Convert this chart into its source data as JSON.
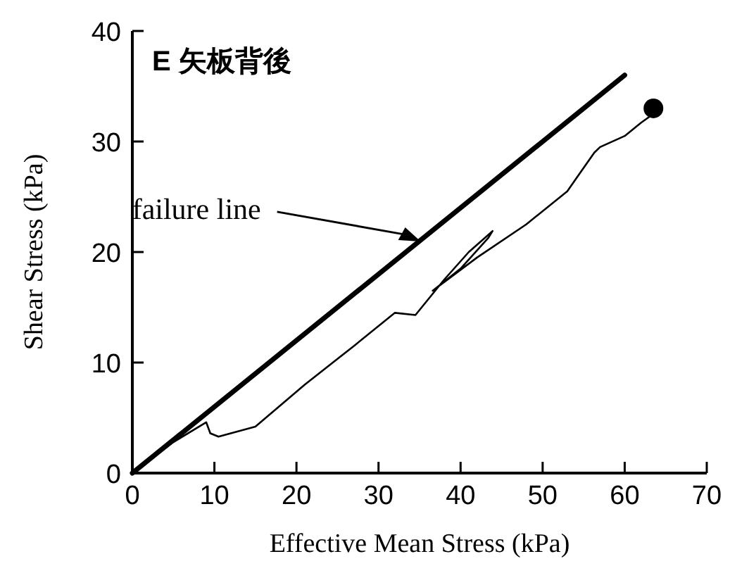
{
  "chart_data": {
    "type": "line",
    "title": "E 矢板背後",
    "xlabel": "Effective Mean Stress (kPa)",
    "ylabel": "Shear Stress  (kPa)",
    "xlim": [
      0,
      70
    ],
    "ylim": [
      0,
      40
    ],
    "xticks": [
      0,
      10,
      20,
      30,
      40,
      50,
      60,
      70
    ],
    "yticks": [
      0,
      10,
      20,
      30,
      40
    ],
    "grid": false,
    "annotations": [
      "failure line"
    ],
    "series": [
      {
        "color": "#000000",
        "x": [
          0,
          60
        ],
        "values": [
          0,
          36
        ]
      },
      {
        "color": "#000000",
        "x": [
          0,
          5,
          9,
          9.5,
          10.5,
          15,
          21,
          27,
          32,
          34.5,
          38,
          41,
          43.9,
          43.4,
          40,
          36.6,
          42,
          48,
          53,
          56.3,
          57,
          60,
          62,
          63.5
        ],
        "values": [
          0,
          2.8,
          4.6,
          3.6,
          3.3,
          4.2,
          8,
          11.5,
          14.5,
          14.3,
          17.5,
          20,
          21.9,
          21.3,
          18.5,
          16.5,
          19.5,
          22.5,
          25.5,
          29,
          29.5,
          30.5,
          31.7,
          32.5
        ]
      },
      {
        "type": "scatter",
        "color": "#000000",
        "marker": "circle",
        "x": [
          63.5
        ],
        "values": [
          33
        ]
      }
    ]
  }
}
